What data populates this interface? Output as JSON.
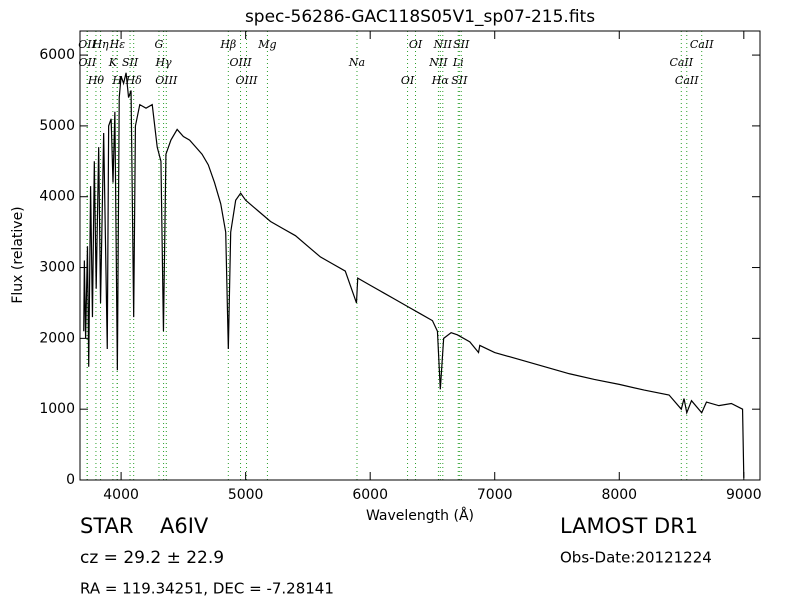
{
  "chart_data": {
    "type": "line",
    "title": "spec-56286-GAC118S05V1_sp07-215.fits",
    "x_label": "Wavelength (Å)",
    "y_label": "Flux (relative)",
    "xlim": [
      3670,
      9130
    ],
    "ylim": [
      0,
      6340
    ],
    "xticks": [
      4000,
      5000,
      6000,
      7000,
      8000,
      9000
    ],
    "yticks": [
      0,
      1000,
      2000,
      3000,
      4000,
      5000,
      6000
    ],
    "color": "#000000",
    "line_color": "#2ca02c",
    "x": [
      3700,
      3705,
      3715,
      3730,
      3740,
      3755,
      3770,
      3785,
      3800,
      3820,
      3835,
      3860,
      3889,
      3900,
      3920,
      3935,
      3950,
      3970,
      3985,
      4000,
      4020,
      4040,
      4060,
      4080,
      4101,
      4115,
      4150,
      4200,
      4250,
      4290,
      4320,
      4340,
      4360,
      4400,
      4450,
      4500,
      4550,
      4600,
      4650,
      4700,
      4750,
      4800,
      4840,
      4861,
      4880,
      4920,
      4960,
      5000,
      5100,
      5200,
      5300,
      5400,
      5500,
      5600,
      5700,
      5800,
      5890,
      5900,
      6000,
      6100,
      6200,
      6300,
      6400,
      6500,
      6540,
      6563,
      6590,
      6650,
      6700,
      6800,
      6870,
      6880,
      7000,
      7200,
      7400,
      7600,
      7800,
      8000,
      8200,
      8400,
      8498,
      8520,
      8542,
      8580,
      8662,
      8700,
      8800,
      8900,
      8990,
      9000
    ],
    "values": [
      2100,
      3100,
      2000,
      3300,
      1600,
      4150,
      2300,
      4500,
      2700,
      4700,
      2500,
      4900,
      1850,
      5000,
      5100,
      4200,
      5200,
      1550,
      5400,
      5700,
      5600,
      5750,
      5400,
      5500,
      2300,
      5000,
      5300,
      5250,
      5300,
      4700,
      4500,
      2100,
      4600,
      4800,
      4950,
      4850,
      4800,
      4700,
      4600,
      4450,
      4200,
      3900,
      3500,
      1850,
      3500,
      3950,
      4050,
      3950,
      3800,
      3650,
      3550,
      3450,
      3300,
      3150,
      3050,
      2950,
      2500,
      2850,
      2750,
      2650,
      2550,
      2450,
      2350,
      2250,
      2100,
      1280,
      2000,
      2080,
      2050,
      1950,
      1800,
      1900,
      1800,
      1700,
      1600,
      1500,
      1420,
      1350,
      1270,
      1200,
      1000,
      1150,
      950,
      1120,
      950,
      1100,
      1050,
      1080,
      1000,
      30
    ],
    "lines": [
      {
        "wavelength": 3727,
        "label": "OII"
      },
      {
        "wavelength": 3729,
        "label": "OII"
      },
      {
        "wavelength": 3798,
        "label": "Hθ"
      },
      {
        "wavelength": 3835,
        "label": "Hη"
      },
      {
        "wavelength": 3934,
        "label": "K"
      },
      {
        "wavelength": 3968,
        "label": "H"
      },
      {
        "wavelength": 3970,
        "label": "Hε"
      },
      {
        "wavelength": 4072,
        "label": "SII"
      },
      {
        "wavelength": 4101,
        "label": "Hδ"
      },
      {
        "wavelength": 4304,
        "label": "G"
      },
      {
        "wavelength": 4341,
        "label": "Hγ"
      },
      {
        "wavelength": 4363,
        "label": "OIII"
      },
      {
        "wavelength": 4861,
        "label": "Hβ"
      },
      {
        "wavelength": 4959,
        "label": "OIII"
      },
      {
        "wavelength": 5007,
        "label": "OIII"
      },
      {
        "wavelength": 5175,
        "label": "Mg"
      },
      {
        "wavelength": 5894,
        "label": "Na"
      },
      {
        "wavelength": 6300,
        "label": "OI"
      },
      {
        "wavelength": 6364,
        "label": "OI"
      },
      {
        "wavelength": 6548,
        "label": "NII"
      },
      {
        "wavelength": 6563,
        "label": "Hα"
      },
      {
        "wavelength": 6583,
        "label": "NII"
      },
      {
        "wavelength": 6707,
        "label": "Li"
      },
      {
        "wavelength": 6716,
        "label": "SII"
      },
      {
        "wavelength": 6731,
        "label": "SII"
      },
      {
        "wavelength": 8498,
        "label": "CaII"
      },
      {
        "wavelength": 8542,
        "label": "CaII"
      },
      {
        "wavelength": 8662,
        "label": "CaII"
      }
    ],
    "info": {
      "class": "STAR",
      "subclass": "A6IV",
      "cz": "cz = 29.2 ± 22.9",
      "coords": "RA = 119.34251, DEC = -7.28141",
      "survey": "LAMOST DR1",
      "date": "Obs-Date:20121224"
    }
  }
}
